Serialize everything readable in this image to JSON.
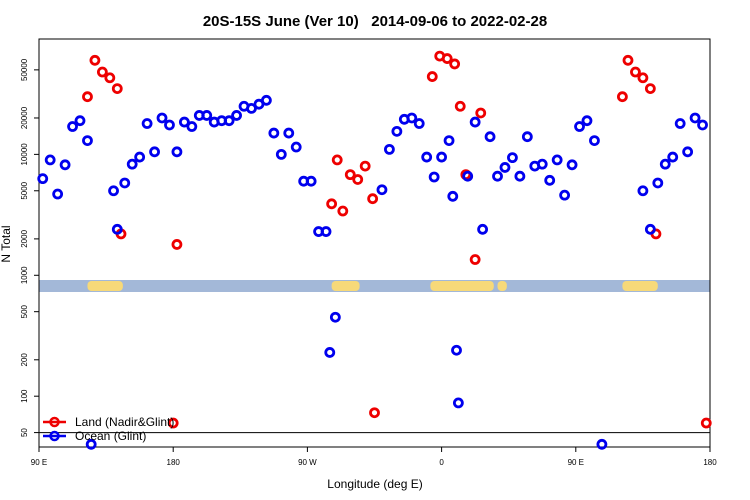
{
  "chart_data": {
    "type": "scatter",
    "title": "20S-15S June (Ver 10)   2014-09-06 to 2022-02-28",
    "xlabel": "Longitude (deg E)",
    "ylabel": "N Total",
    "yscale": "log",
    "xlim": [
      90,
      450
    ],
    "ylim": [
      38,
      90000
    ],
    "x_ticks": [
      {
        "value": 90,
        "label": "90 E"
      },
      {
        "value": 162,
        "label": "180"
      },
      {
        "value": 234,
        "label": "90 W"
      },
      {
        "value": 306,
        "label": "0"
      },
      {
        "value": 378,
        "label": "90 E"
      },
      {
        "value": 450,
        "label": "180"
      }
    ],
    "y_ticks": [
      {
        "value": 50,
        "label": "50"
      },
      {
        "value": 100,
        "label": "100"
      },
      {
        "value": 200,
        "label": "200"
      },
      {
        "value": 500,
        "label": "500"
      },
      {
        "value": 1000,
        "label": "1000"
      },
      {
        "value": 2000,
        "label": "2000"
      },
      {
        "value": 5000,
        "label": "5000"
      },
      {
        "value": 10000,
        "label": "10000"
      },
      {
        "value": 20000,
        "label": "20000"
      },
      {
        "value": 50000,
        "label": "50000"
      }
    ],
    "reference_line": 50,
    "legend": {
      "position": "bottom-left",
      "entries": [
        {
          "name": "Land (Nadir&Glint)",
          "color": "#ee0000"
        },
        {
          "name": "Ocean (Glint)",
          "color": "#0000ee"
        }
      ]
    },
    "land_mask": {
      "ocean_color": "#a3b8d8",
      "land_color": "#f7d979",
      "land_ranges": [
        [
          116,
          135
        ],
        [
          247,
          262
        ],
        [
          300,
          334
        ],
        [
          336,
          341
        ],
        [
          403,
          422
        ]
      ]
    },
    "series": [
      {
        "name": "Land (Nadir&Glint)",
        "color": "#ee0000",
        "points": [
          {
            "x": 116,
            "y": 30000
          },
          {
            "x": 120,
            "y": 60000
          },
          {
            "x": 124,
            "y": 48000
          },
          {
            "x": 128,
            "y": 43000
          },
          {
            "x": 132,
            "y": 35000
          },
          {
            "x": 134,
            "y": 2200
          },
          {
            "x": 162,
            "y": 60
          },
          {
            "x": 164,
            "y": 1800
          },
          {
            "x": 247,
            "y": 3900
          },
          {
            "x": 250,
            "y": 9000
          },
          {
            "x": 253,
            "y": 3400
          },
          {
            "x": 257,
            "y": 6800
          },
          {
            "x": 261,
            "y": 6200
          },
          {
            "x": 265,
            "y": 8000
          },
          {
            "x": 269,
            "y": 4300
          },
          {
            "x": 270,
            "y": 73
          },
          {
            "x": 301,
            "y": 44000
          },
          {
            "x": 305,
            "y": 65000
          },
          {
            "x": 309,
            "y": 62000
          },
          {
            "x": 313,
            "y": 56000
          },
          {
            "x": 316,
            "y": 25000
          },
          {
            "x": 319,
            "y": 6800
          },
          {
            "x": 324,
            "y": 1350
          },
          {
            "x": 327,
            "y": 22000
          },
          {
            "x": 403,
            "y": 30000
          },
          {
            "x": 406,
            "y": 60000
          },
          {
            "x": 410,
            "y": 48000
          },
          {
            "x": 414,
            "y": 43000
          },
          {
            "x": 418,
            "y": 35000
          },
          {
            "x": 421,
            "y": 2200
          },
          {
            "x": 448,
            "y": 60
          }
        ]
      },
      {
        "name": "Ocean (Glint)",
        "color": "#0000ee",
        "points": [
          {
            "x": 92,
            "y": 6300
          },
          {
            "x": 96,
            "y": 9000
          },
          {
            "x": 100,
            "y": 4700
          },
          {
            "x": 104,
            "y": 8200
          },
          {
            "x": 108,
            "y": 17000
          },
          {
            "x": 112,
            "y": 19000
          },
          {
            "x": 116,
            "y": 13000
          },
          {
            "x": 118,
            "y": 40
          },
          {
            "x": 130,
            "y": 5000
          },
          {
            "x": 132,
            "y": 2400
          },
          {
            "x": 136,
            "y": 5800
          },
          {
            "x": 140,
            "y": 8300
          },
          {
            "x": 144,
            "y": 9500
          },
          {
            "x": 148,
            "y": 18000
          },
          {
            "x": 152,
            "y": 10500
          },
          {
            "x": 156,
            "y": 20000
          },
          {
            "x": 160,
            "y": 17500
          },
          {
            "x": 164,
            "y": 10500
          },
          {
            "x": 168,
            "y": 18500
          },
          {
            "x": 172,
            "y": 17000
          },
          {
            "x": 176,
            "y": 21000
          },
          {
            "x": 180,
            "y": 21000
          },
          {
            "x": 184,
            "y": 18500
          },
          {
            "x": 188,
            "y": 19000
          },
          {
            "x": 192,
            "y": 19000
          },
          {
            "x": 196,
            "y": 21000
          },
          {
            "x": 200,
            "y": 25000
          },
          {
            "x": 204,
            "y": 24000
          },
          {
            "x": 208,
            "y": 26000
          },
          {
            "x": 212,
            "y": 28000
          },
          {
            "x": 216,
            "y": 15000
          },
          {
            "x": 220,
            "y": 10000
          },
          {
            "x": 224,
            "y": 15000
          },
          {
            "x": 228,
            "y": 11500
          },
          {
            "x": 232,
            "y": 6000
          },
          {
            "x": 236,
            "y": 6000
          },
          {
            "x": 240,
            "y": 2300
          },
          {
            "x": 244,
            "y": 2300
          },
          {
            "x": 246,
            "y": 230
          },
          {
            "x": 249,
            "y": 450
          },
          {
            "x": 274,
            "y": 5100
          },
          {
            "x": 278,
            "y": 11000
          },
          {
            "x": 282,
            "y": 15500
          },
          {
            "x": 286,
            "y": 19500
          },
          {
            "x": 290,
            "y": 20000
          },
          {
            "x": 294,
            "y": 18000
          },
          {
            "x": 298,
            "y": 9500
          },
          {
            "x": 302,
            "y": 6500
          },
          {
            "x": 306,
            "y": 9500
          },
          {
            "x": 310,
            "y": 13000
          },
          {
            "x": 312,
            "y": 4500
          },
          {
            "x": 314,
            "y": 240
          },
          {
            "x": 315,
            "y": 88
          },
          {
            "x": 320,
            "y": 6600
          },
          {
            "x": 324,
            "y": 18500
          },
          {
            "x": 328,
            "y": 2400
          },
          {
            "x": 332,
            "y": 14000
          },
          {
            "x": 336,
            "y": 6600
          },
          {
            "x": 340,
            "y": 7800
          },
          {
            "x": 344,
            "y": 9400
          },
          {
            "x": 348,
            "y": 6600
          },
          {
            "x": 352,
            "y": 14000
          },
          {
            "x": 356,
            "y": 8000
          },
          {
            "x": 360,
            "y": 8300
          },
          {
            "x": 364,
            "y": 6100
          },
          {
            "x": 368,
            "y": 9000
          },
          {
            "x": 372,
            "y": 4600
          },
          {
            "x": 376,
            "y": 8200
          },
          {
            "x": 380,
            "y": 17000
          },
          {
            "x": 384,
            "y": 19000
          },
          {
            "x": 388,
            "y": 13000
          },
          {
            "x": 392,
            "y": 40
          },
          {
            "x": 414,
            "y": 5000
          },
          {
            "x": 418,
            "y": 2400
          },
          {
            "x": 422,
            "y": 5800
          },
          {
            "x": 426,
            "y": 8300
          },
          {
            "x": 430,
            "y": 9500
          },
          {
            "x": 434,
            "y": 18000
          },
          {
            "x": 438,
            "y": 10500
          },
          {
            "x": 442,
            "y": 20000
          },
          {
            "x": 446,
            "y": 17500
          }
        ]
      }
    ]
  }
}
